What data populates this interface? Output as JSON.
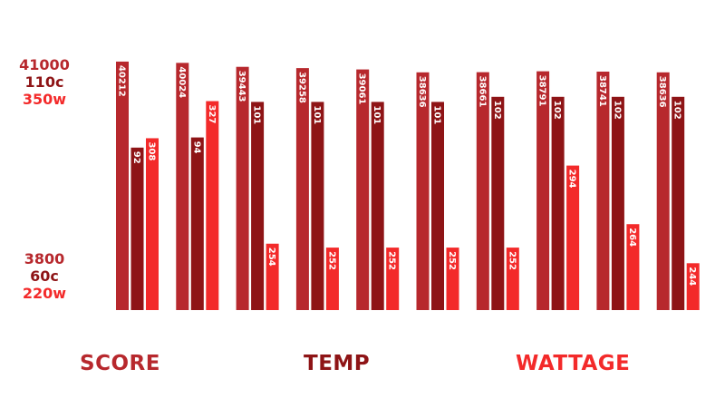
{
  "colors": {
    "score": "#b7282d",
    "temp": "#8e1416",
    "wattage": "#f32a2a"
  },
  "axis": {
    "top": {
      "score": "41000",
      "temp": "110c",
      "wattage": "350w"
    },
    "bottom": {
      "score": "3800",
      "temp": "60c",
      "wattage": "220w"
    }
  },
  "legend": {
    "score": "SCORE",
    "temp": "TEMP",
    "wattage": "WATTAGE"
  },
  "chart_data": {
    "type": "bar",
    "categories": [
      "",
      "",
      "",
      "",
      "",
      "",
      "",
      "",
      "",
      ""
    ],
    "series": [
      {
        "name": "SCORE",
        "values": [
          40212,
          40024,
          39443,
          39258,
          39061,
          38636,
          38661,
          38791,
          38741,
          38636
        ],
        "labels": [
          "40212",
          "40024",
          "39443",
          "39258",
          "39061",
          "38636",
          "38661",
          "38791",
          "38741",
          "38636"
        ]
      },
      {
        "name": "TEMP",
        "values": [
          92,
          94,
          101,
          101,
          101,
          101,
          102,
          102,
          102,
          102
        ],
        "labels": [
          "92",
          "94",
          "101",
          "101",
          "101",
          "101",
          "102",
          "102",
          "102",
          "102"
        ]
      },
      {
        "name": "WATTAGE",
        "values": [
          308,
          327,
          254,
          252,
          252,
          252,
          252,
          294,
          264,
          244
        ],
        "labels": [
          "308",
          "327",
          "254",
          "252",
          "252",
          "252",
          "252",
          "294",
          "264",
          "244"
        ]
      }
    ],
    "axes": {
      "score": {
        "min": 3800,
        "max": 41000
      },
      "temp": {
        "min": 60,
        "max": 110
      },
      "wattage": {
        "min": 220,
        "max": 350
      }
    },
    "grid": false,
    "legend_position": "bottom"
  }
}
